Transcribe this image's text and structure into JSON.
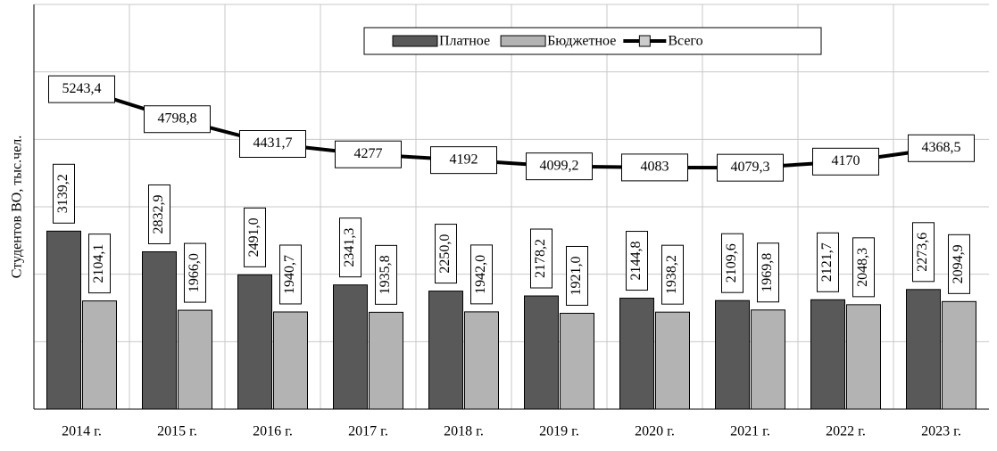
{
  "chart_data": {
    "type": "bar_line",
    "y_label": "Студентов ВО, тыс.чел.",
    "categories": [
      "2014 г.",
      "2015 г.",
      "2016 г.",
      "2017 г.",
      "2018 г.",
      "2019 г.",
      "2020 г.",
      "2021 г.",
      "2022 г.",
      "2023 г."
    ],
    "series": [
      {
        "name": "Платное",
        "color": "#595959",
        "kind": "bar",
        "values": [
          3139.2,
          2832.9,
          2491.0,
          2341.3,
          2250.0,
          2178.2,
          2144.8,
          2109.6,
          2121.7,
          2273.6
        ],
        "value_labels": [
          "3139,2",
          "2832,9",
          "2491,0",
          "2341,3",
          "2250,0",
          "2178,2",
          "2144,8",
          "2109,6",
          "2121,7",
          "2273,6"
        ]
      },
      {
        "name": "Бюджетное",
        "color": "#b3b3b3",
        "kind": "bar",
        "values": [
          2104.1,
          1966.0,
          1940.7,
          1935.8,
          1942.0,
          1921.0,
          1938.2,
          1969.8,
          2048.3,
          2094.9
        ],
        "value_labels": [
          "2104,1",
          "1966,0",
          "1940,7",
          "1935,8",
          "1942,0",
          "1921,0",
          "1938,2",
          "1969,8",
          "2048,3",
          "2094,9"
        ]
      },
      {
        "name": "Всего",
        "color": "#000000",
        "kind": "line",
        "values": [
          5243.4,
          4798.8,
          4431.7,
          4277,
          4192,
          4099.2,
          4083,
          4079.3,
          4170,
          4368.5
        ],
        "value_labels": [
          "5243,4",
          "4798,8",
          "4431,7",
          "4277",
          "4192",
          "4099,2",
          "4083",
          "4079,3",
          "4170",
          "4368,5"
        ]
      }
    ],
    "ylim": [
      500,
      6500
    ],
    "yticks": [
      1500,
      2500,
      3500,
      4500,
      5500,
      6500
    ],
    "grid": true,
    "legend": "top"
  }
}
